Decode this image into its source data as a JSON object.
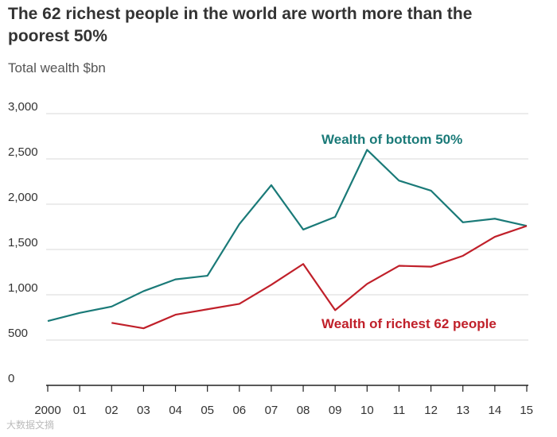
{
  "chart_data": {
    "type": "line",
    "title": "The 62 richest people in the world are worth more than the poorest 50%",
    "subtitle": "Total wealth $bn",
    "categories": [
      "2000",
      "01",
      "02",
      "03",
      "04",
      "05",
      "06",
      "07",
      "08",
      "09",
      "10",
      "11",
      "12",
      "13",
      "14",
      "15"
    ],
    "ylim": [
      0,
      3000
    ],
    "yticks": [
      0,
      500,
      1000,
      1500,
      2000,
      2500,
      3000
    ],
    "ytick_labels": [
      "0",
      "500",
      "1,000",
      "1,500",
      "2,000",
      "2,500",
      "3,000"
    ],
    "grid": true,
    "series": [
      {
        "name": "Wealth of bottom 50%",
        "color": "#1a7a78",
        "values": [
          710,
          800,
          870,
          1040,
          1170,
          1210,
          1780,
          2210,
          1720,
          1860,
          2600,
          2260,
          2150,
          1800,
          1840,
          1760
        ]
      },
      {
        "name": "Wealth of richest 62 people",
        "color": "#c0202a",
        "values": [
          null,
          null,
          690,
          630,
          780,
          840,
          900,
          1110,
          1340,
          830,
          1120,
          1320,
          1310,
          1430,
          1640,
          1760
        ]
      }
    ]
  },
  "watermark": "大数据文摘"
}
